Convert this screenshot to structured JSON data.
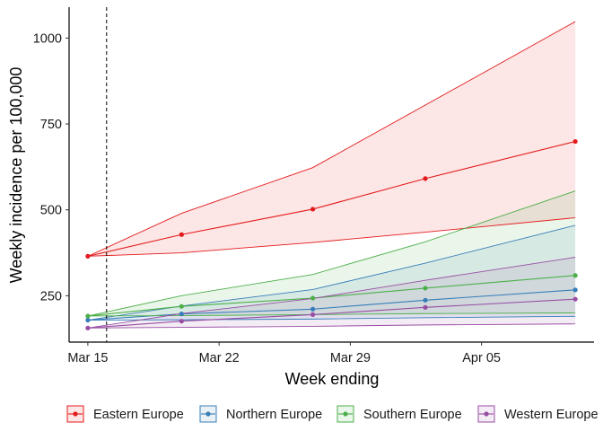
{
  "chart_data": {
    "type": "line",
    "xlabel": "Week ending",
    "ylabel": "Weekly incidence per 100,000",
    "x": [
      "2020-03-15",
      "2020-03-20",
      "2020-03-27",
      "2020-04-02",
      "2020-04-10"
    ],
    "xlim": [
      "2020-03-14",
      "2020-04-11"
    ],
    "ylim": [
      115,
      1090
    ],
    "x_ticks": [
      {
        "date": "2020-03-15",
        "label": "Mar 15"
      },
      {
        "date": "2020-03-22",
        "label": "Mar 22"
      },
      {
        "date": "2020-03-29",
        "label": "Mar 29"
      },
      {
        "date": "2020-04-05",
        "label": "Apr 05"
      }
    ],
    "y_ticks": [
      250,
      500,
      750,
      1000
    ],
    "vline_date": "2020-03-16",
    "grid": false,
    "legend_position": "bottom",
    "series": [
      {
        "name": "Eastern Europe",
        "color": "#e41a1c",
        "values": [
          365,
          428,
          502,
          591,
          699
        ],
        "lower": [
          365,
          375,
          405,
          435,
          477
        ],
        "upper": [
          365,
          490,
          623,
          805,
          1048
        ]
      },
      {
        "name": "Northern Europe",
        "color": "#377eb8",
        "values": [
          179,
          197,
          211,
          237,
          267
        ],
        "lower": [
          179,
          180,
          182,
          186,
          190
        ],
        "upper": [
          179,
          220,
          268,
          345,
          455
        ]
      },
      {
        "name": "Southern Europe",
        "color": "#4daf4a",
        "values": [
          191,
          219,
          243,
          272,
          309
        ],
        "lower": [
          191,
          192,
          195,
          198,
          200
        ],
        "upper": [
          191,
          250,
          312,
          407,
          555
        ]
      },
      {
        "name": "Western Europe",
        "color": "#984ea3",
        "values": [
          156,
          176,
          195,
          216,
          240
        ],
        "lower": [
          156,
          158,
          161,
          165,
          168
        ],
        "upper": [
          156,
          198,
          242,
          295,
          362
        ]
      }
    ]
  }
}
